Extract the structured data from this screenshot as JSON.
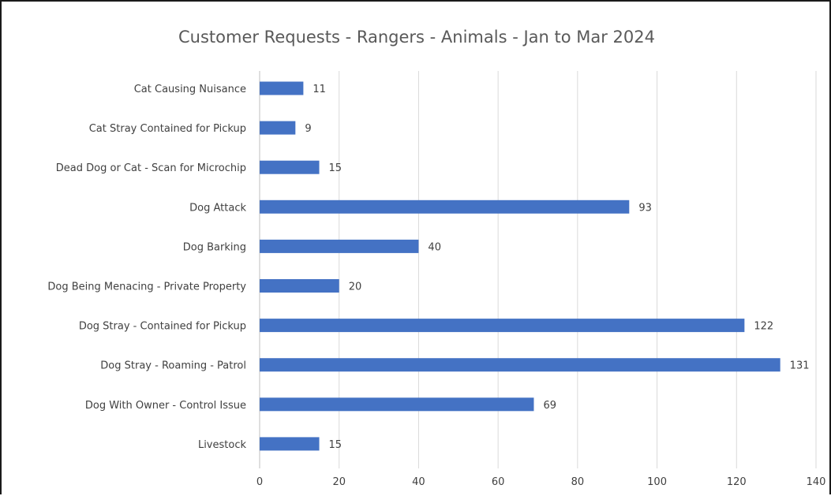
{
  "chart_data": {
    "type": "bar",
    "orientation": "horizontal",
    "title": "Customer Requests - Rangers - Animals - Jan to Mar 2024",
    "categories": [
      "Cat Causing Nuisance",
      "Cat Stray Contained for Pickup",
      "Dead Dog or Cat - Scan for Microchip",
      "Dog Attack",
      "Dog Barking",
      "Dog Being Menacing - Private Property",
      "Dog Stray - Contained for Pickup",
      "Dog Stray - Roaming - Patrol",
      "Dog With Owner - Control Issue",
      "Livestock"
    ],
    "values": [
      11,
      9,
      15,
      93,
      40,
      20,
      122,
      131,
      69,
      15
    ],
    "xlim": [
      0,
      140
    ],
    "xticks": [
      0,
      20,
      40,
      60,
      80,
      100,
      120,
      140
    ],
    "xtick_labels": [
      "0",
      "20",
      "40",
      "60",
      "80",
      "100",
      "120",
      "140"
    ],
    "data_labels": [
      "11",
      "9",
      "15",
      "93",
      "40",
      "20",
      "122",
      "131",
      "69",
      "15"
    ],
    "grid": true,
    "legend": "none",
    "bar_color": "#4472c4"
  }
}
